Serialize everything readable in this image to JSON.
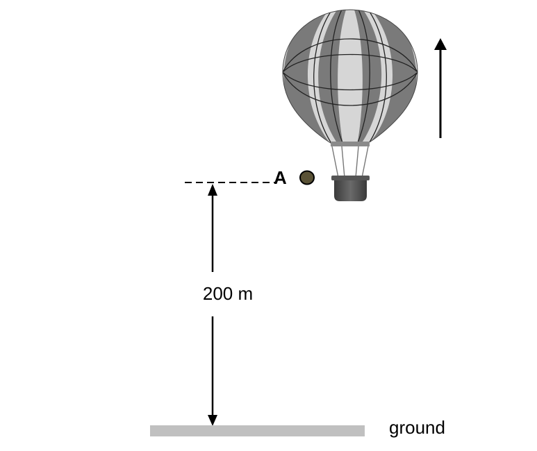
{
  "labels": {
    "point": "A",
    "height": "200 m",
    "ground": "ground"
  },
  "colors": {
    "ink": "#000000",
    "ground": "#c0c0c0",
    "balloon_dark": "#7a7a7a",
    "balloon_light": "#d6d6d6",
    "basket": "#4a4a4a",
    "object": "#5a5236"
  },
  "icons": {
    "balloon": "hot-air-balloon-icon",
    "motion_arrow": "up-arrow-icon"
  }
}
